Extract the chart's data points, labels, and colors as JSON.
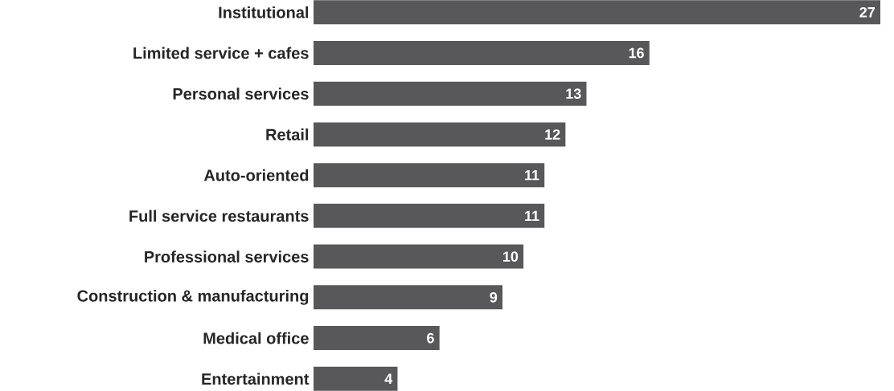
{
  "chart_data": {
    "type": "bar",
    "orientation": "horizontal",
    "categories": [
      "Institutional",
      "Limited service + cafes",
      "Personal services",
      "Retail",
      "Auto-oriented",
      "Full service restaurants",
      "Professional services",
      "Construction & manufacturing",
      "Medical office",
      "Entertainment"
    ],
    "values": [
      27,
      16,
      13,
      12,
      11,
      11,
      10,
      9,
      6,
      4
    ],
    "color": "#58585a",
    "data_labels": true
  }
}
